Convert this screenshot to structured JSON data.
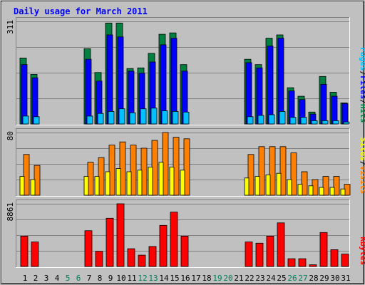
{
  "chart_data": {
    "type": "bar",
    "title": "Daily usage for March 2011",
    "categories": [
      "1",
      "2",
      "3",
      "4",
      "5",
      "6",
      "7",
      "8",
      "9",
      "10",
      "11",
      "12",
      "13",
      "14",
      "15",
      "16",
      "17",
      "18",
      "19",
      "20",
      "21",
      "22",
      "23",
      "24",
      "25",
      "26",
      "27",
      "28",
      "29",
      "30",
      "31"
    ],
    "weekend_days": [
      "5",
      "6",
      "12",
      "13",
      "19",
      "20",
      "26",
      "27"
    ],
    "panels": [
      {
        "id": "hits",
        "ymax": 311,
        "ymax_label": "311",
        "ylabel_parts": [
          "Pages",
          "/",
          "Files",
          "/",
          "Hits"
        ],
        "series": [
          {
            "name": "Hits",
            "color": "#008040",
            "values": [
              200,
              150,
              0,
              0,
              0,
              0,
              228,
              156,
              306,
              306,
              168,
              170,
              214,
              272,
              276,
              180,
              0,
              0,
              0,
              0,
              0,
              196,
              180,
              260,
              270,
              110,
              84,
              36,
              144,
              96,
              64
            ]
          },
          {
            "name": "Files",
            "color": "#0000ff",
            "values": [
              180,
              140,
              0,
              0,
              0,
              0,
              196,
              130,
              270,
              264,
              160,
              154,
              188,
              240,
              260,
              160,
              0,
              0,
              0,
              0,
              0,
              186,
              170,
              236,
              260,
              100,
              74,
              30,
              120,
              84,
              62
            ]
          },
          {
            "name": "Pages",
            "color": "#00c0ff",
            "values": [
              24,
              22,
              0,
              0,
              0,
              0,
              24,
              32,
              38,
              46,
              34,
              46,
              48,
              40,
              38,
              36,
              0,
              0,
              0,
              0,
              0,
              22,
              26,
              28,
              38,
              20,
              20,
              10,
              10,
              10,
              6
            ]
          }
        ]
      },
      {
        "id": "visits",
        "ymax": 80,
        "ymax_label": "80",
        "ylabel_parts": [
          "Sites",
          "/",
          "Visits"
        ],
        "series": [
          {
            "name": "Visits",
            "color": "#ff8000",
            "values": [
              52,
              38,
              0,
              0,
              0,
              0,
              42,
              48,
              64,
              68,
              64,
              60,
              70,
              80,
              74,
              72,
              0,
              0,
              0,
              0,
              0,
              52,
              62,
              62,
              62,
              54,
              30,
              20,
              24,
              24,
              14
            ]
          },
          {
            "name": "Sites",
            "color": "#ffff00",
            "values": [
              24,
              20,
              0,
              0,
              0,
              0,
              24,
              24,
              30,
              34,
              30,
              32,
              36,
              42,
              36,
              32,
              0,
              0,
              0,
              0,
              0,
              22,
              24,
              26,
              28,
              20,
              14,
              12,
              10,
              10,
              8
            ]
          }
        ]
      },
      {
        "id": "kbytes",
        "ymax": 8861,
        "ymax_label": "8861",
        "ylabel_parts": [
          "KBytes"
        ],
        "series": [
          {
            "name": "KBytes",
            "color": "#ff0000",
            "values": [
              4290,
              3460,
              0,
              0,
              0,
              0,
              5050,
              2140,
              6820,
              8861,
              2510,
              1600,
              2830,
              5810,
              7680,
              4290,
              0,
              0,
              0,
              0,
              0,
              3460,
              3290,
              4290,
              6160,
              1100,
              1100,
              240,
              4800,
              2380,
              1750
            ]
          }
        ]
      }
    ]
  },
  "colors": {
    "background": "#c0c0c0",
    "title": "#0000ff",
    "weekday_label": "#000000",
    "weekend_label": "#00805c",
    "ylabel_separator": "#000000"
  }
}
